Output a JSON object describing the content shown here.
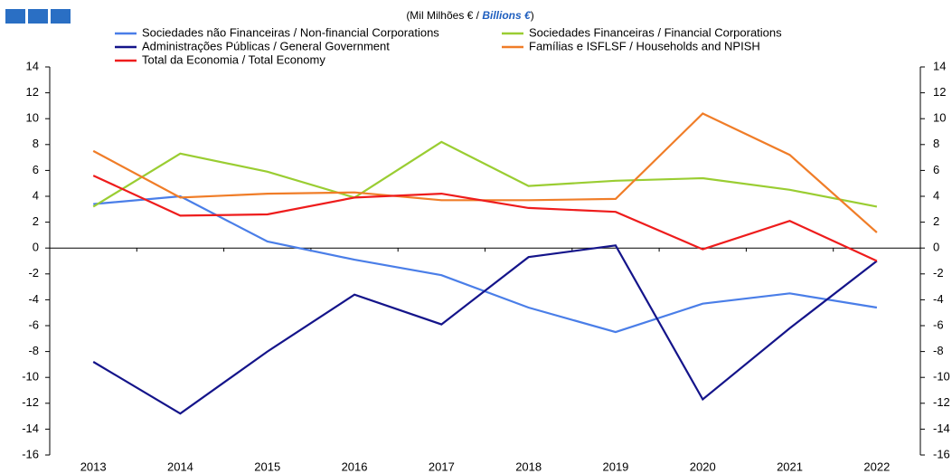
{
  "chart_data": {
    "type": "line",
    "subtitle_parts": [
      "(Mil Milhões € / ",
      "Billions €",
      ")"
    ],
    "categories": [
      "2013",
      "2014",
      "2015",
      "2016",
      "2017",
      "2018",
      "2019",
      "2020",
      "2021",
      "2022"
    ],
    "series": [
      {
        "name": "Sociedades não Financeiras / Non-financial Corporations",
        "color": "#4a7ee8",
        "values": [
          3.4,
          4.0,
          0.5,
          -0.9,
          -2.1,
          -4.6,
          -6.5,
          -4.3,
          -3.5,
          -4.6
        ]
      },
      {
        "name": "Sociedades Financeiras / Financial Corporations",
        "color": "#9acd32",
        "values": [
          3.2,
          7.3,
          5.9,
          3.9,
          8.2,
          4.8,
          5.2,
          5.4,
          4.5,
          3.2
        ]
      },
      {
        "name": "Administrações Públicas / General Government",
        "color": "#14148a",
        "values": [
          -8.8,
          -12.8,
          -8.0,
          -3.6,
          -5.9,
          -0.7,
          0.2,
          -11.7,
          -6.2,
          -1.0
        ]
      },
      {
        "name": "Famílias e ISFLSF / Households and NPISH",
        "color": "#f07d28",
        "values": [
          7.5,
          3.9,
          4.2,
          4.3,
          3.7,
          3.7,
          3.8,
          10.4,
          7.2,
          1.2
        ]
      },
      {
        "name": "Total da Economia / Total Economy",
        "color": "#ee1c1c",
        "values": [
          5.6,
          2.5,
          2.6,
          3.9,
          4.2,
          3.1,
          2.8,
          -0.1,
          2.1,
          -1.0
        ]
      }
    ],
    "ylim": [
      -16,
      14
    ],
    "yticks": [
      -16,
      -14,
      -12,
      -10,
      -8,
      -6,
      -4,
      -2,
      0,
      2,
      4,
      6,
      8,
      10,
      12,
      14
    ],
    "y2lim": [
      -16,
      14
    ],
    "y2ticks": [
      -16,
      -14,
      -12,
      -10,
      -8,
      -6,
      -4,
      -2,
      0,
      2,
      4,
      6,
      8,
      10,
      12,
      14
    ],
    "grid": false
  }
}
